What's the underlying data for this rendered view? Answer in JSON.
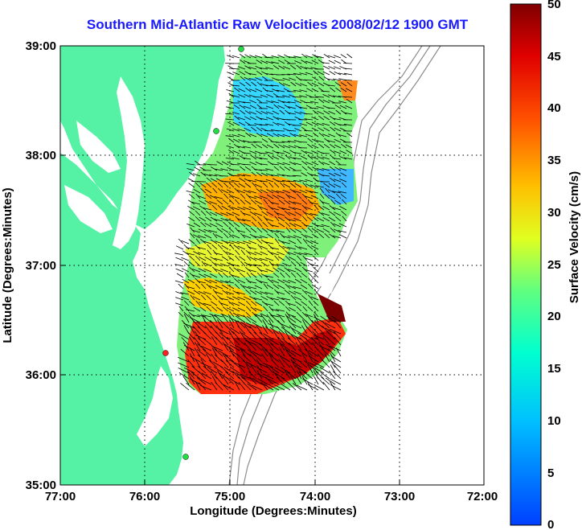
{
  "title": "Southern Mid-Atlantic Raw Velocities 2008/02/12 1900 GMT",
  "xlabel": "Longitude (Degrees:Minutes)",
  "ylabel": "Latitude (Degrees:Minutes)",
  "colorbar_label": "Surface Velocity (cm/s)",
  "x_ticks": [
    "77:00",
    "76:00",
    "75:00",
    "74:00",
    "73:00",
    "72:00"
  ],
  "y_ticks": [
    "39:00",
    "38:00",
    "37:00",
    "36:00",
    "35:00"
  ],
  "cbar_ticks": [
    "0",
    "5",
    "10",
    "15",
    "20",
    "25",
    "30",
    "35",
    "40",
    "45",
    "50"
  ],
  "colors": {
    "land": "#55f2a6",
    "title": "#1a1aff",
    "contour": "#8c8c8c",
    "station": "#22dd44",
    "station_red": "#ff2020"
  }
}
